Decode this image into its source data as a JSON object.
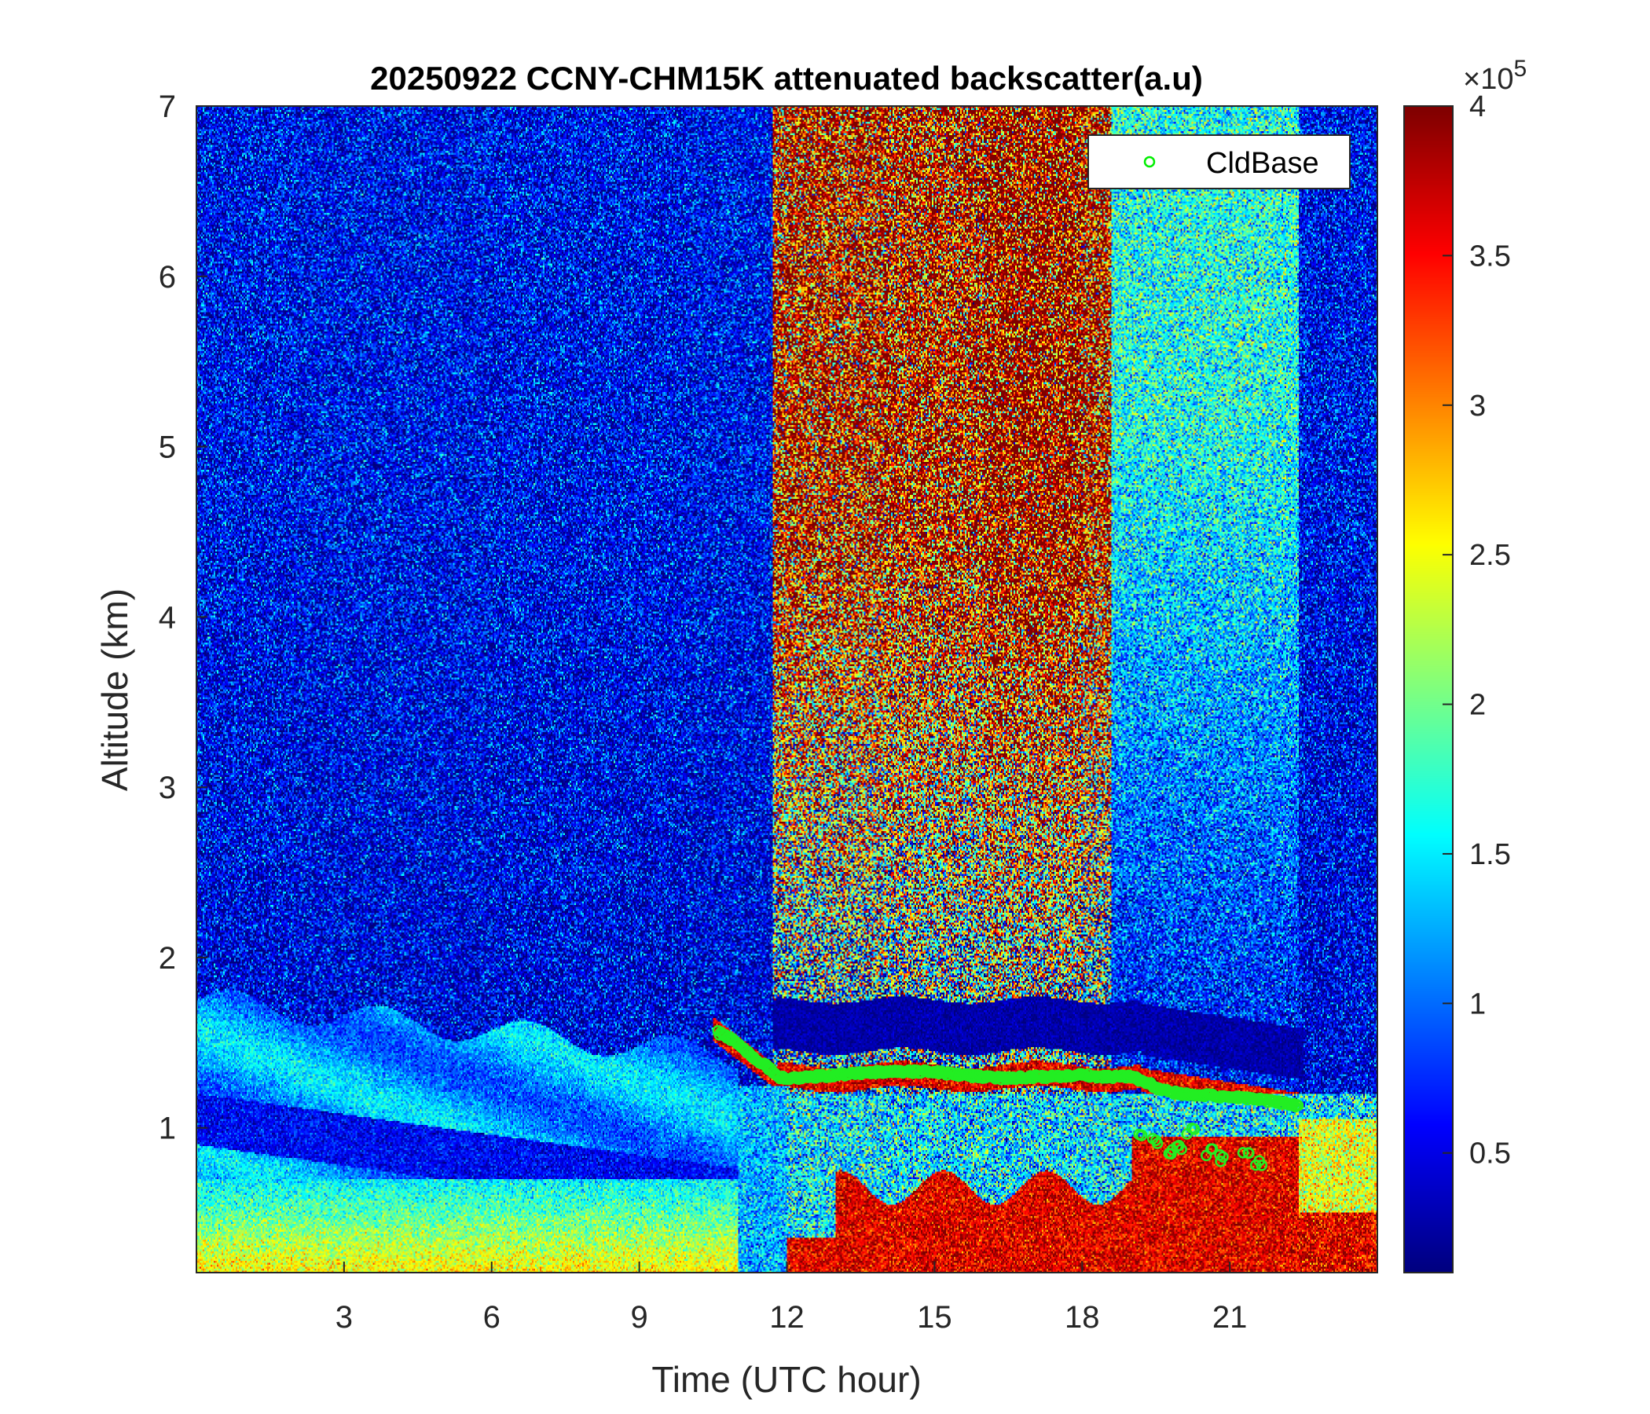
{
  "chart_data": {
    "type": "heatmap",
    "title": "20250922 CCNY-CHM15K attenuated backscatter(a.u)",
    "xlabel": "Time (UTC hour)",
    "ylabel": "Altitude (km)",
    "xlim": [
      0,
      24
    ],
    "ylim": [
      0.15,
      7
    ],
    "xticks": [
      3,
      6,
      9,
      12,
      15,
      18,
      21
    ],
    "xtick_labels": [
      "3",
      "6",
      "9",
      "12",
      "15",
      "18",
      "21"
    ],
    "yticks": [
      1,
      2,
      3,
      4,
      5,
      6,
      7
    ],
    "ytick_labels": [
      "1",
      "2",
      "3",
      "4",
      "5",
      "6",
      "7"
    ],
    "colormap": "jet",
    "clim": [
      10000,
      400000
    ],
    "colorbar": {
      "exponent_label": "×10",
      "exponent_power": "5",
      "ticks": [
        0.5,
        1,
        1.5,
        2,
        2.5,
        3,
        3.5,
        4
      ],
      "tick_labels": [
        "0.5",
        "1",
        "1.5",
        "2",
        "2.5",
        "3",
        "3.5",
        "4"
      ]
    },
    "legend": {
      "entries": [
        "CldBase"
      ],
      "position": "top-right",
      "marker_color": "#00ff00"
    },
    "cloud_base": {
      "name": "CldBase",
      "x": [
        10.6,
        10.8,
        11.0,
        11.3,
        11.6,
        11.8,
        12.0,
        12.5,
        13.0,
        13.5,
        14.0,
        14.5,
        15.0,
        15.5,
        16.0,
        16.5,
        17.0,
        17.5,
        18.0,
        18.5,
        19.0,
        19.3,
        19.6,
        20.0,
        20.5,
        21.0,
        21.5,
        22.0,
        22.4
      ],
      "y": [
        1.56,
        1.53,
        1.5,
        1.42,
        1.36,
        1.3,
        1.29,
        1.3,
        1.31,
        1.32,
        1.33,
        1.33,
        1.33,
        1.31,
        1.3,
        1.29,
        1.3,
        1.3,
        1.31,
        1.3,
        1.3,
        1.27,
        1.22,
        1.2,
        1.19,
        1.18,
        1.17,
        1.15,
        1.13
      ]
    },
    "cloud_base_low": {
      "x": [
        19.2,
        19.5,
        19.8,
        20.0,
        20.2,
        20.6,
        20.9,
        21.3,
        21.6
      ],
      "y": [
        0.94,
        0.92,
        0.85,
        0.88,
        0.98,
        0.86,
        0.82,
        0.85,
        0.8
      ]
    }
  }
}
